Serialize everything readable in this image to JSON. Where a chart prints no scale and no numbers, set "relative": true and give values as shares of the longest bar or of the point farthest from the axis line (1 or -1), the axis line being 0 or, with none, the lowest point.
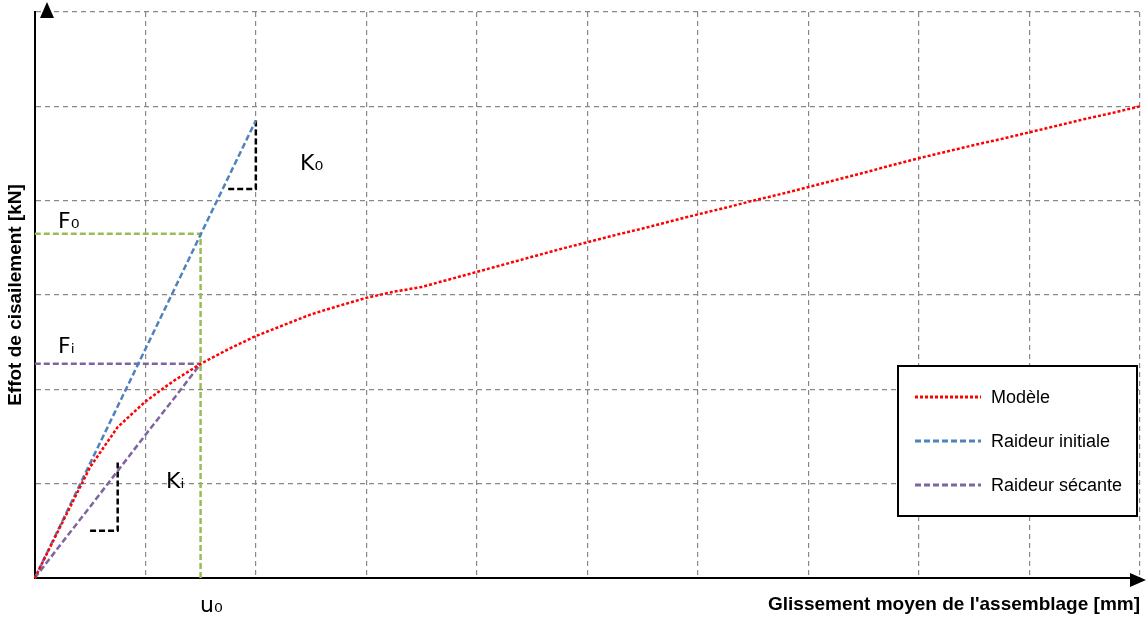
{
  "chart_data": {
    "type": "line",
    "relative": true,
    "xlabel": "Glissement moyen de l'assemblage [mm]",
    "ylabel": "Effot de cisailement [kN]",
    "categories": [
      null,
      null,
      null,
      null,
      null,
      null,
      null,
      null,
      null,
      null,
      null,
      null,
      null,
      null,
      null,
      null,
      null,
      null,
      null,
      null,
      null,
      null,
      null,
      null,
      null,
      null,
      null,
      null,
      null,
      null,
      null,
      null,
      null,
      null,
      null,
      null,
      null,
      null,
      null,
      null,
      null
    ],
    "grid": true,
    "legend": "bottom right",
    "series": [
      {
        "name": "Modèle",
        "color": "#ff0000",
        "line_style": "dotted",
        "values": [
          0,
          0.118,
          0.235,
          0.32,
          0.374,
          0.417,
          0.454,
          0.485,
          0.513,
          0.536,
          0.559,
          0.577,
          0.594,
          0.607,
          0.617,
          0.633,
          0.649,
          0.665,
          0.681,
          0.697,
          0.712,
          0.727,
          0.741,
          0.756,
          0.771,
          0.785,
          0.8,
          0.814,
          0.829,
          0.844,
          0.859,
          0.875,
          0.89,
          0.904,
          0.918,
          0.931,
          0.945,
          0.959,
          0.973,
          0.986,
          1
        ]
      },
      {
        "name": "Raideur initiale",
        "color": "#4f81bd",
        "line_style": "dashed",
        "values": [
          0,
          0.121,
          0.243,
          0.364,
          0.485,
          0.606,
          0.728,
          0.849,
          0.97,
          null,
          null,
          null,
          null,
          null,
          null,
          null,
          null,
          null,
          null,
          null,
          null,
          null,
          null,
          null,
          null,
          null,
          null,
          null,
          null,
          null,
          null,
          null,
          null,
          null,
          null,
          null,
          null,
          null,
          null,
          null,
          null
        ]
      },
      {
        "name": "Raideur sécante",
        "color": "#8064a2",
        "line_style": "dashed",
        "values": [
          0,
          0.076,
          0.151,
          0.227,
          0.303,
          0.378,
          0.454,
          null,
          null,
          null,
          null,
          null,
          null,
          null,
          null,
          null,
          null,
          null,
          null,
          null,
          null,
          null,
          null,
          null,
          null,
          null,
          null,
          null,
          null,
          null,
          null,
          null,
          null,
          null,
          null,
          null,
          null,
          null,
          null,
          null,
          null
        ]
      },
      {
        "color": "#8064a2",
        "line_style": "dashed",
        "values": [
          0.454,
          0.454,
          0.454,
          0.454,
          0.454,
          0.454,
          0.454,
          null,
          null,
          null,
          null,
          null,
          null,
          null,
          null,
          null,
          null,
          null,
          null,
          null,
          null,
          null,
          null,
          null,
          null,
          null,
          null,
          null,
          null,
          null,
          null,
          null,
          null,
          null,
          null,
          null,
          null,
          null,
          null,
          null,
          null
        ]
      },
      {
        "type": "step",
        "color": "#9bbb59",
        "line_style": "dashed",
        "values": [
          0.73,
          0.73,
          0.73,
          0.73,
          0.73,
          0.73,
          0,
          null,
          null,
          null,
          null,
          null,
          null,
          null,
          null,
          null,
          null,
          null,
          null,
          null,
          null,
          null,
          null,
          null,
          null,
          null,
          null,
          null,
          null,
          null,
          null,
          null,
          null,
          null,
          null,
          null,
          null,
          null,
          null,
          null,
          null
        ]
      },
      {
        "type": "step",
        "color": "#000000",
        "line_style": "dashed",
        "values": [
          null,
          null,
          null,
          null,
          null,
          null,
          null,
          0.825,
          0.97,
          null,
          null,
          null,
          null,
          null,
          null,
          null,
          null,
          null,
          null,
          null,
          null,
          null,
          null,
          null,
          null,
          null,
          null,
          null,
          null,
          null,
          null,
          null,
          null,
          null,
          null,
          null,
          null,
          null,
          null,
          null,
          null
        ]
      },
      {
        "type": "step",
        "color": "#000000",
        "line_style": "dashed",
        "values": [
          null,
          null,
          0.1,
          0.25,
          null,
          null,
          null,
          null,
          null,
          null,
          null,
          null,
          null,
          null,
          null,
          null,
          null,
          null,
          null,
          null,
          null,
          null,
          null,
          null,
          null,
          null,
          null,
          null,
          null,
          null,
          null,
          null,
          null,
          null,
          null,
          null,
          null,
          null,
          null,
          null,
          null
        ]
      }
    ],
    "annotations": [
      "K₀",
      "F₀",
      "Fᵢ",
      "Kᵢ",
      "u₀"
    ]
  }
}
